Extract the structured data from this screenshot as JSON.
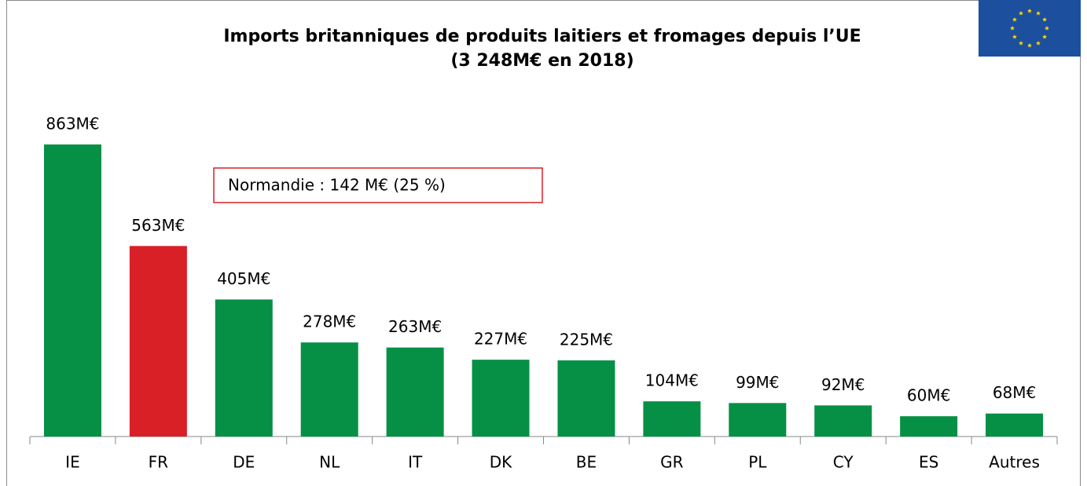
{
  "chart_data": {
    "type": "bar",
    "title": "Imports britanniques de produits laitiers et fromages depuis l’UE",
    "subtitle": "(3 248M€ en 2018)",
    "categories": [
      "IE",
      "FR",
      "DE",
      "NL",
      "IT",
      "DK",
      "BE",
      "GR",
      "PL",
      "CY",
      "ES",
      "Autres"
    ],
    "values": [
      863,
      563,
      405,
      278,
      263,
      227,
      225,
      104,
      99,
      92,
      60,
      68
    ],
    "value_labels": [
      "863M€",
      "563M€",
      "405M€",
      "278M€",
      "263M€",
      "227M€",
      "225M€",
      "104M€",
      "99M€",
      "92M€",
      "60M€",
      "68M€"
    ],
    "colors": [
      "#069046",
      "#d92027",
      "#069046",
      "#069046",
      "#069046",
      "#069046",
      "#069046",
      "#069046",
      "#069046",
      "#069046",
      "#069046",
      "#069046"
    ],
    "annotation": "Normandie : 142 M€ (25 %)"
  }
}
